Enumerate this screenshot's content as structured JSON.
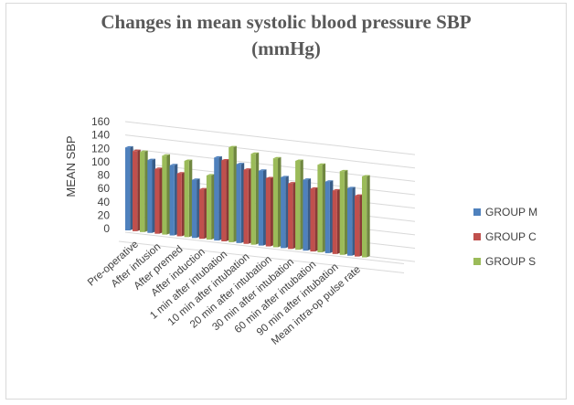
{
  "chart_data": {
    "type": "bar",
    "title_line1": "Changes in mean systolic blood pressure SBP",
    "title_line2": "(mmHg)",
    "ylabel": "MEAN SBP",
    "xlabel": "",
    "ylim": [
      0,
      160
    ],
    "yticks": [
      0,
      20,
      40,
      60,
      80,
      100,
      120,
      140,
      160
    ],
    "grid": true,
    "legend_position": "right",
    "categories": [
      "Pre-operative",
      "After infusion",
      "After premed",
      "After induction",
      "1 min after intubation",
      "10 min after intubation",
      "20 min after intubation",
      "30 min after intubation",
      "60 min after intubation",
      "90 min after intubation",
      "Mean intra-op pulse rate"
    ],
    "series": [
      {
        "name": "GROUP M",
        "color": "#4f81bd",
        "values": [
          124,
          109,
          105,
          87,
          124,
          118,
          112,
          106,
          106,
          107,
          101
        ]
      },
      {
        "name": "GROUP C",
        "color": "#c0504d",
        "values": [
          120,
          97,
          94,
          74,
          121,
          111,
          102,
          98,
          94,
          95,
          91
        ]
      },
      {
        "name": "GROUP S",
        "color": "#9bbb59",
        "values": [
          120,
          118,
          114,
          96,
          142,
          136,
          133,
          133,
          131,
          125,
          121
        ]
      }
    ]
  }
}
